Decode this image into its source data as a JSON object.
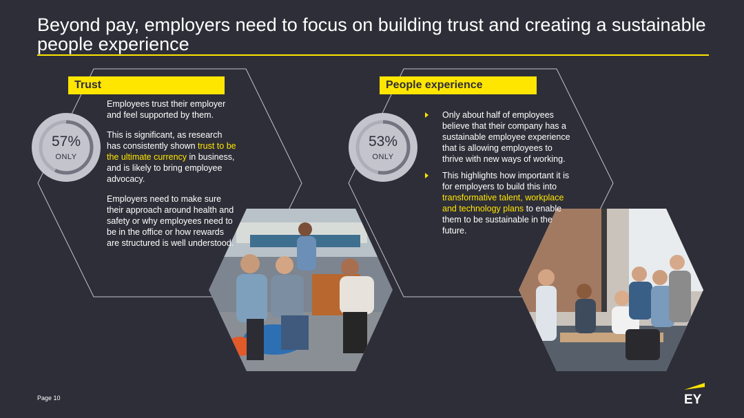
{
  "title": "Beyond pay, employers need to focus on building trust and creating a sustainable people experience",
  "colors": {
    "background": "#2e2e38",
    "accent": "#ffe600",
    "stat_circle": "#c4c4cd"
  },
  "trust": {
    "label": "Trust",
    "stat_value": "57%",
    "stat_note": "ONLY",
    "p1": "Employees trust their employer and feel supported by them.",
    "p2_before": "This is significant, as research has consistently shown ",
    "p2_highlight": "trust to be the ultimate currency",
    "p2_after": " in business, and is likely to bring employee advocacy.",
    "p3": "Employers need to make sure their approach around health and safety or why employees need to be in the office or how rewards are structured is well understood.",
    "photo_icon": "people-meeting-photo"
  },
  "people": {
    "label": "People experience",
    "stat_value": "53%",
    "stat_note": "ONLY",
    "b1": "Only about half of employees believe that their company has a sustainable employee experience that is allowing employees to thrive with new ways of working.",
    "b2_before": "This highlights how important it is for employers to build this into ",
    "b2_highlight": "transformative talent, workplace and technology plans",
    "b2_after": " to enable them to be sustainable in the future.",
    "photo_icon": "office-team-photo"
  },
  "footer": {
    "page": "Page 10",
    "logo_text": "EY"
  }
}
